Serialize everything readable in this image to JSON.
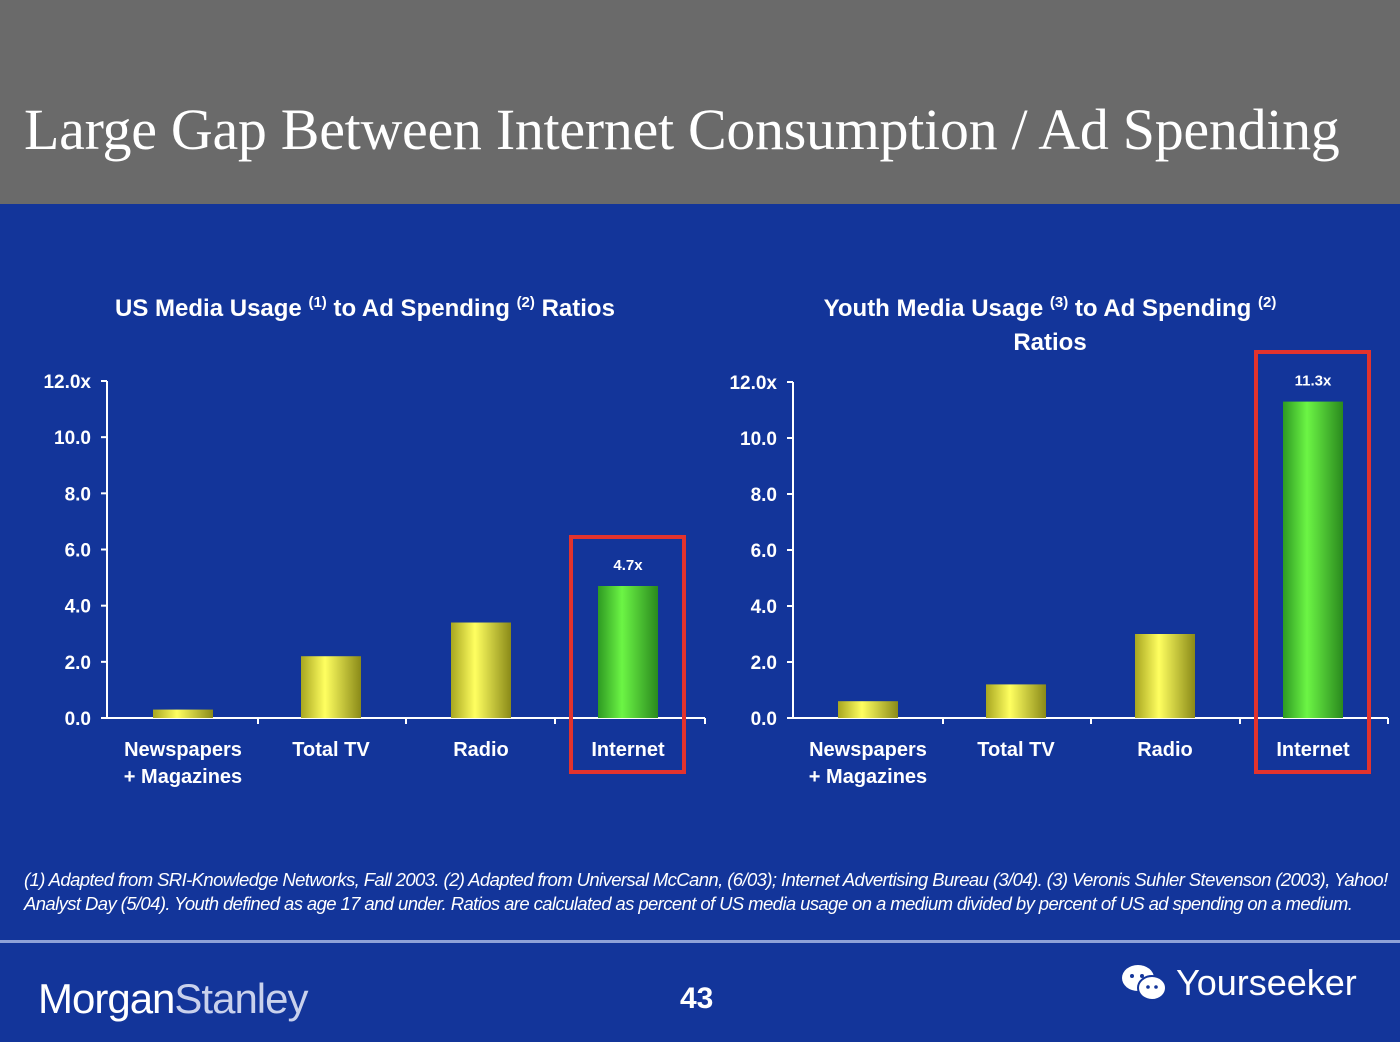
{
  "title": "Large Gap Between Internet Consumption / Ad Spending",
  "chart_data": [
    {
      "type": "bar",
      "title_parts": [
        "US Media Usage",
        "(1)",
        "to Ad Spending",
        "(2)",
        "Ratios"
      ],
      "categories": [
        "Newspapers + Magazines",
        "Total TV",
        "Radio",
        "Internet"
      ],
      "category_lines": [
        [
          "Newspapers",
          "+ Magazines"
        ],
        [
          "Total TV"
        ],
        [
          "Radio"
        ],
        [
          "Internet"
        ]
      ],
      "values": [
        0.3,
        2.2,
        3.4,
        4.7
      ],
      "data_labels": [
        "",
        "",
        "",
        "4.7x"
      ],
      "highlight": "Internet",
      "yticks": [
        "0.0",
        "2.0",
        "4.0",
        "6.0",
        "8.0",
        "10.0",
        "12.0x"
      ],
      "ylim": [
        0,
        12
      ],
      "grid": false
    },
    {
      "type": "bar",
      "title_parts": [
        "Youth Media Usage",
        "(3)",
        "to Ad Spending",
        "(2)",
        "Ratios"
      ],
      "categories": [
        "Newspapers + Magazines",
        "Total TV",
        "Radio",
        "Internet"
      ],
      "category_lines": [
        [
          "Newspapers",
          "+ Magazines"
        ],
        [
          "Total TV"
        ],
        [
          "Radio"
        ],
        [
          "Internet"
        ]
      ],
      "values": [
        0.6,
        1.2,
        3.0,
        11.3
      ],
      "data_labels": [
        "",
        "",
        "",
        "11.3x"
      ],
      "highlight": "Internet",
      "yticks": [
        "0.0",
        "2.0",
        "4.0",
        "6.0",
        "8.0",
        "10.0",
        "12.0x"
      ],
      "ylim": [
        0,
        12
      ],
      "grid": false
    }
  ],
  "colors": {
    "bar": "#e6e640",
    "highlight_bar": "#5ee63a",
    "highlight_box": "#e2332e",
    "background": "#13359a",
    "title_bar": "#6a6a6a"
  },
  "footnote": "(1) Adapted from SRI-Knowledge Networks, Fall 2003.  (2) Adapted from Universal McCann, (6/03); Internet Advertising Bureau (3/04). (3) Veronis Suhler Stevenson (2003), Yahoo! Analyst Day (5/04).  Youth defined as age 17 and under.  Ratios are calculated as percent of US media usage on a medium divided by percent of US ad spending on a medium.",
  "footer": {
    "logo_left": "Morgan",
    "logo_right": "Stanley",
    "page": "43",
    "watermark": "Yourseeker",
    "watermark_icon": "wechat-icon"
  }
}
